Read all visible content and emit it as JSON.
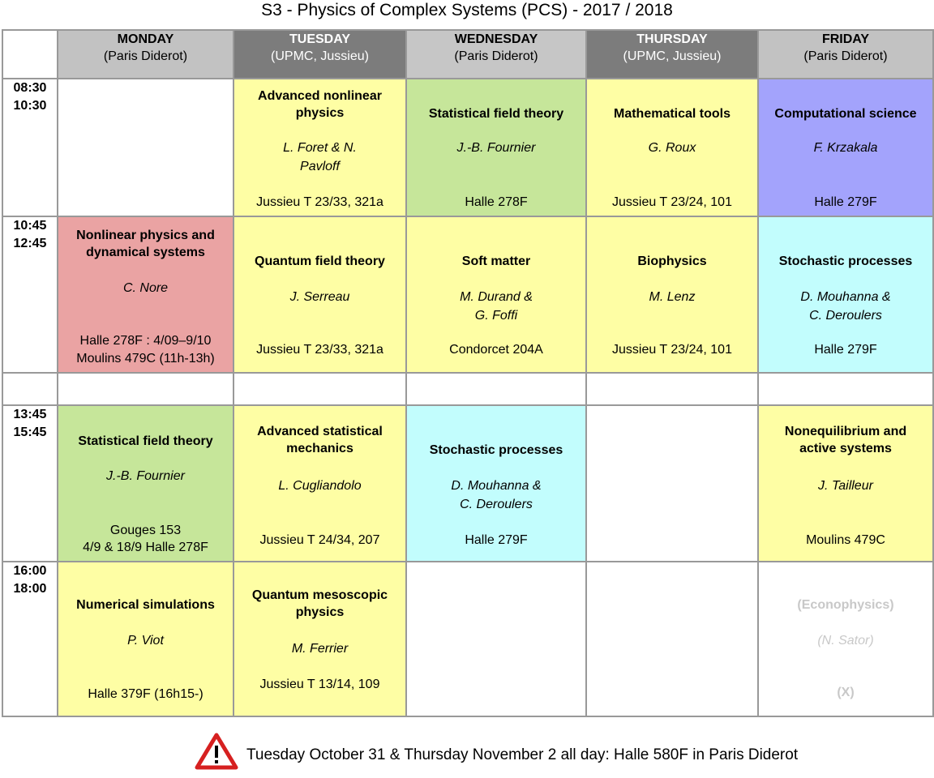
{
  "title": "S3 - Physics of Complex Systems (PCS) - 2017 / 2018",
  "colors": {
    "yellow": "#fefea4",
    "green": "#c6e69a",
    "blue": "#a3a3fc",
    "red": "#eaa3a3",
    "cyan": "#c2fdfd",
    "white": "#ffffff",
    "warning_red": "#d62020"
  },
  "days": [
    {
      "name": "MONDAY",
      "location": "(Paris Diderot)"
    },
    {
      "name": "TUESDAY",
      "location": "(UPMC, Jussieu)"
    },
    {
      "name": "WEDNESDAY",
      "location": "(Paris Diderot)"
    },
    {
      "name": "THURSDAY",
      "location": "(UPMC, Jussieu)"
    },
    {
      "name": "FRIDAY",
      "location": "(Paris Diderot)"
    }
  ],
  "slots": [
    {
      "start": "08:30",
      "end": "10:30"
    },
    {
      "start": "10:45",
      "end": "12:45"
    },
    {
      "start": "13:45",
      "end": "15:45"
    },
    {
      "start": "16:00",
      "end": "18:00"
    }
  ],
  "courses": {
    "s0_mon": {},
    "s0_tue": {
      "title": "Advanced nonlinear physics",
      "teacher": "L. Foret & N. Pavloff",
      "room": "Jussieu T 23/33, 321a"
    },
    "s0_wed": {
      "title": "Statistical field theory",
      "teacher": "J.-B. Fournier",
      "room": "Halle 278F"
    },
    "s0_thu": {
      "title": "Mathematical tools",
      "teacher": "G. Roux",
      "room": "Jussieu T 23/24, 101"
    },
    "s0_fri": {
      "title": "Computational science",
      "teacher": "F. Krzakala",
      "room": "Halle 279F"
    },
    "s1_mon": {
      "title": "Nonlinear physics and dynamical systems",
      "teacher": "C. Nore",
      "room_1": "Halle 278F : 4/09–9/10",
      "room_2": "Moulins 479C (11h-13h)"
    },
    "s1_tue": {
      "title": "Quantum field theory",
      "teacher": "J. Serreau",
      "room": "Jussieu T 23/33, 321a"
    },
    "s1_wed": {
      "title": "Soft matter",
      "teacher_1": "M. Durand &",
      "teacher_2": "G. Foffi",
      "room": "Condorcet 204A"
    },
    "s1_thu": {
      "title": "Biophysics",
      "teacher": "M. Lenz",
      "room": "Jussieu T 23/24, 101"
    },
    "s1_fri": {
      "title": "Stochastic processes",
      "teacher_1": "D. Mouhanna &",
      "teacher_2": "C. Deroulers",
      "room": "Halle 279F"
    },
    "s2_mon": {
      "title": "Statistical field theory",
      "teacher": "J.-B. Fournier",
      "room_1": "Gouges 153",
      "room_2": "4/9 & 18/9 Halle 278F"
    },
    "s2_tue": {
      "title": "Advanced statistical mechanics",
      "teacher": "L. Cugliandolo",
      "room": "Jussieu T 24/34, 207"
    },
    "s2_wed": {
      "title": "Stochastic processes",
      "teacher_1": "D. Mouhanna &",
      "teacher_2": "C. Deroulers",
      "room": "Halle 279F"
    },
    "s2_thu": {},
    "s2_fri": {
      "title": "Nonequilibrium and active systems",
      "teacher": "J. Tailleur",
      "room": "Moulins 479C"
    },
    "s3_mon": {
      "title": "Numerical simulations",
      "teacher": "P. Viot",
      "room": "Halle 379F (16h15-)"
    },
    "s3_tue": {
      "title": "Quantum mesoscopic physics",
      "teacher": "M. Ferrier",
      "room": "Jussieu T 13/14, 109"
    },
    "s3_wed": {},
    "s3_thu": {},
    "s3_fri": {
      "title": "(Econophysics)",
      "teacher": "(N. Sator)",
      "room": "(X)"
    }
  },
  "notice": {
    "icon": "warning-triangle-icon",
    "text": "Tuesday October 31 & Thursday November 2 all day: Halle 580F in Paris Diderot"
  }
}
